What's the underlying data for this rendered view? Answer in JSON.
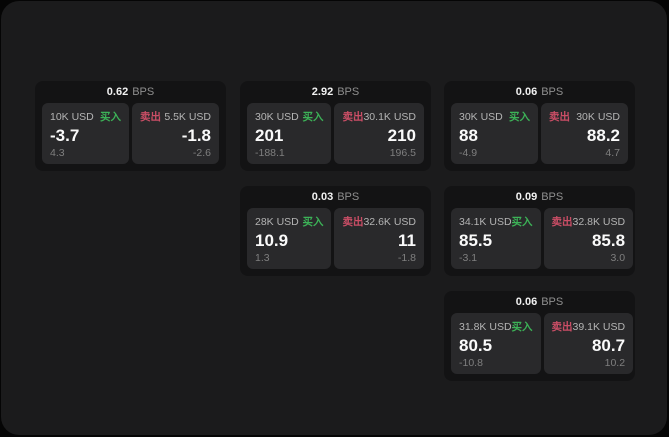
{
  "labels": {
    "buy": "买入",
    "sell": "卖出",
    "bps": "BPS"
  },
  "colors": {
    "background": "#050505",
    "panel": "#1b1b1c",
    "card": "#131314",
    "cell": "#29292b",
    "buy_green": "#3cb257",
    "sell_red": "#cb4e66"
  },
  "cards": [
    {
      "spread": "0.62",
      "buy": {
        "size": "10K USD",
        "price": "-3.7",
        "delta": "4.3"
      },
      "sell": {
        "size": "5.5K USD",
        "price": "-1.8",
        "delta": "-2.6"
      }
    },
    {
      "spread": "2.92",
      "buy": {
        "size": "30K USD",
        "price": "201",
        "delta": "-188.1"
      },
      "sell": {
        "size": "30.1K USD",
        "price": "210",
        "delta": "196.5"
      }
    },
    {
      "spread": "0.06",
      "buy": {
        "size": "30K USD",
        "price": "88",
        "delta": "-4.9"
      },
      "sell": {
        "size": "30K USD",
        "price": "88.2",
        "delta": "4.7"
      }
    },
    {
      "spread": "0.03",
      "buy": {
        "size": "28K USD",
        "price": "10.9",
        "delta": "1.3"
      },
      "sell": {
        "size": "32.6K USD",
        "price": "11",
        "delta": "-1.8"
      }
    },
    {
      "spread": "0.09",
      "buy": {
        "size": "34.1K USD",
        "price": "85.5",
        "delta": "-3.1"
      },
      "sell": {
        "size": "32.8K USD",
        "price": "85.8",
        "delta": "3.0"
      }
    },
    {
      "spread": "0.06",
      "buy": {
        "size": "31.8K USD",
        "price": "80.5",
        "delta": "-10.8"
      },
      "sell": {
        "size": "39.1K USD",
        "price": "80.7",
        "delta": "10.2"
      }
    }
  ]
}
